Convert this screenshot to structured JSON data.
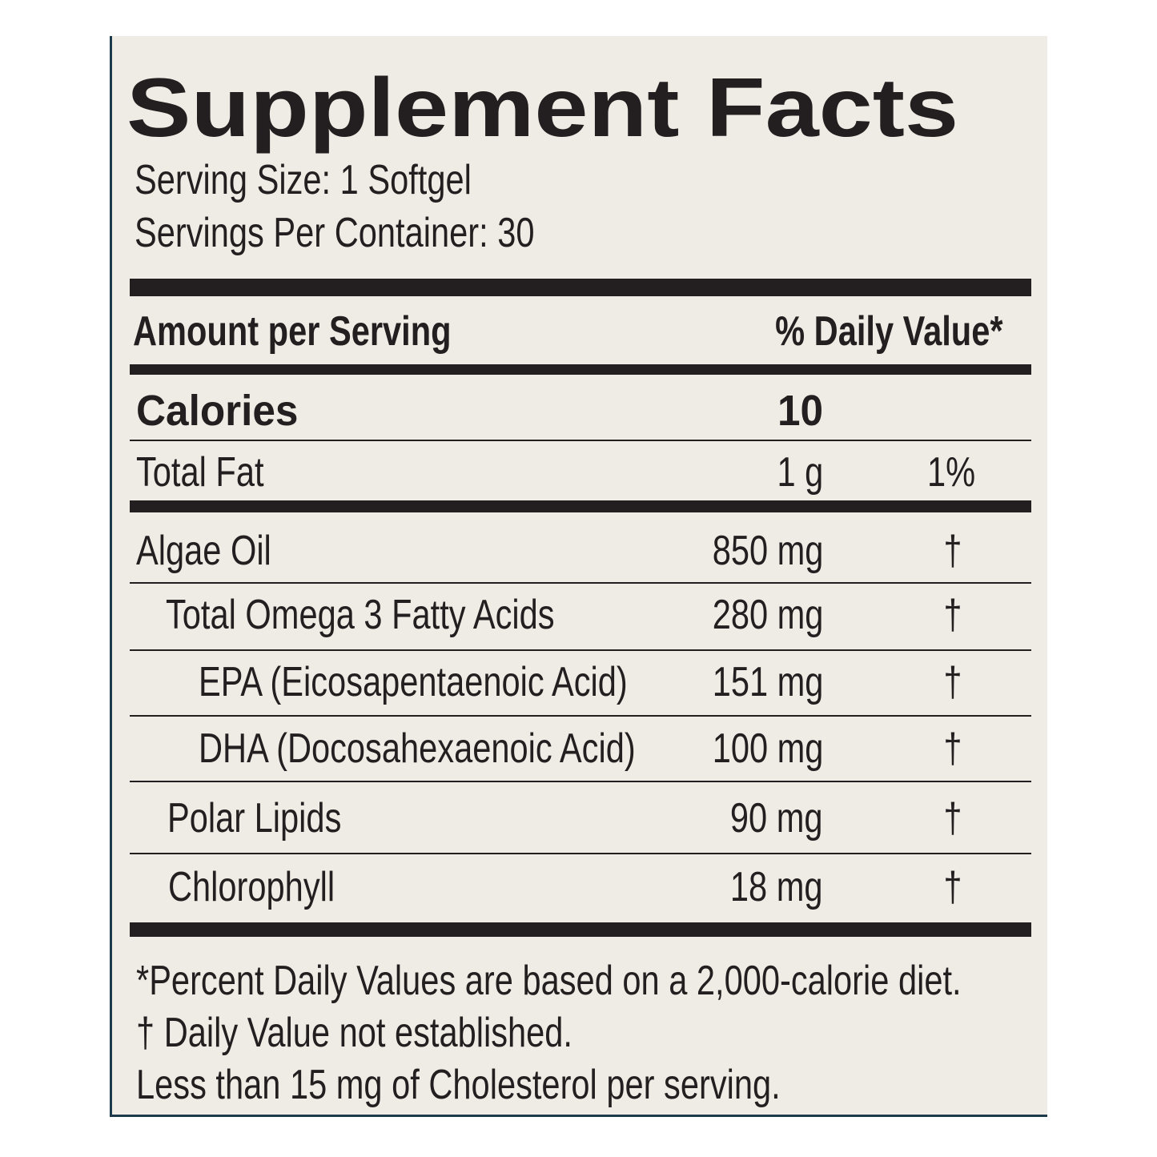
{
  "title": "Supplement Facts",
  "serving_size": "Serving Size: 1 Softgel",
  "servings_per_container": "Servings Per Container: 30",
  "header": {
    "amount": "Amount per Serving",
    "daily_value": "% Daily Value*"
  },
  "calories": {
    "name": "Calories",
    "amount": "10"
  },
  "rows": [
    {
      "name": "Total Fat",
      "amount": "1 g",
      "daily_value": "1%"
    },
    {
      "name": "Algae Oil",
      "amount": "850 mg",
      "daily_value": "†"
    },
    {
      "name": "Total Omega 3 Fatty Acids",
      "amount": "280 mg",
      "daily_value": "†"
    },
    {
      "name": "EPA (Eicosapentaenoic Acid)",
      "amount": "151 mg",
      "daily_value": "†"
    },
    {
      "name": "DHA (Docosahexaenoic Acid)",
      "amount": "100 mg",
      "daily_value": "†"
    },
    {
      "name": "Polar Lipids",
      "amount": "90 mg",
      "daily_value": "†"
    },
    {
      "name": "Chlorophyll",
      "amount": "18 mg",
      "daily_value": "†"
    }
  ],
  "footnotes": [
    "*Percent Daily Values are based on a 2,000-calorie diet.",
    "† Daily Value not established.",
    "Less than 15 mg of Cholesterol per serving."
  ]
}
